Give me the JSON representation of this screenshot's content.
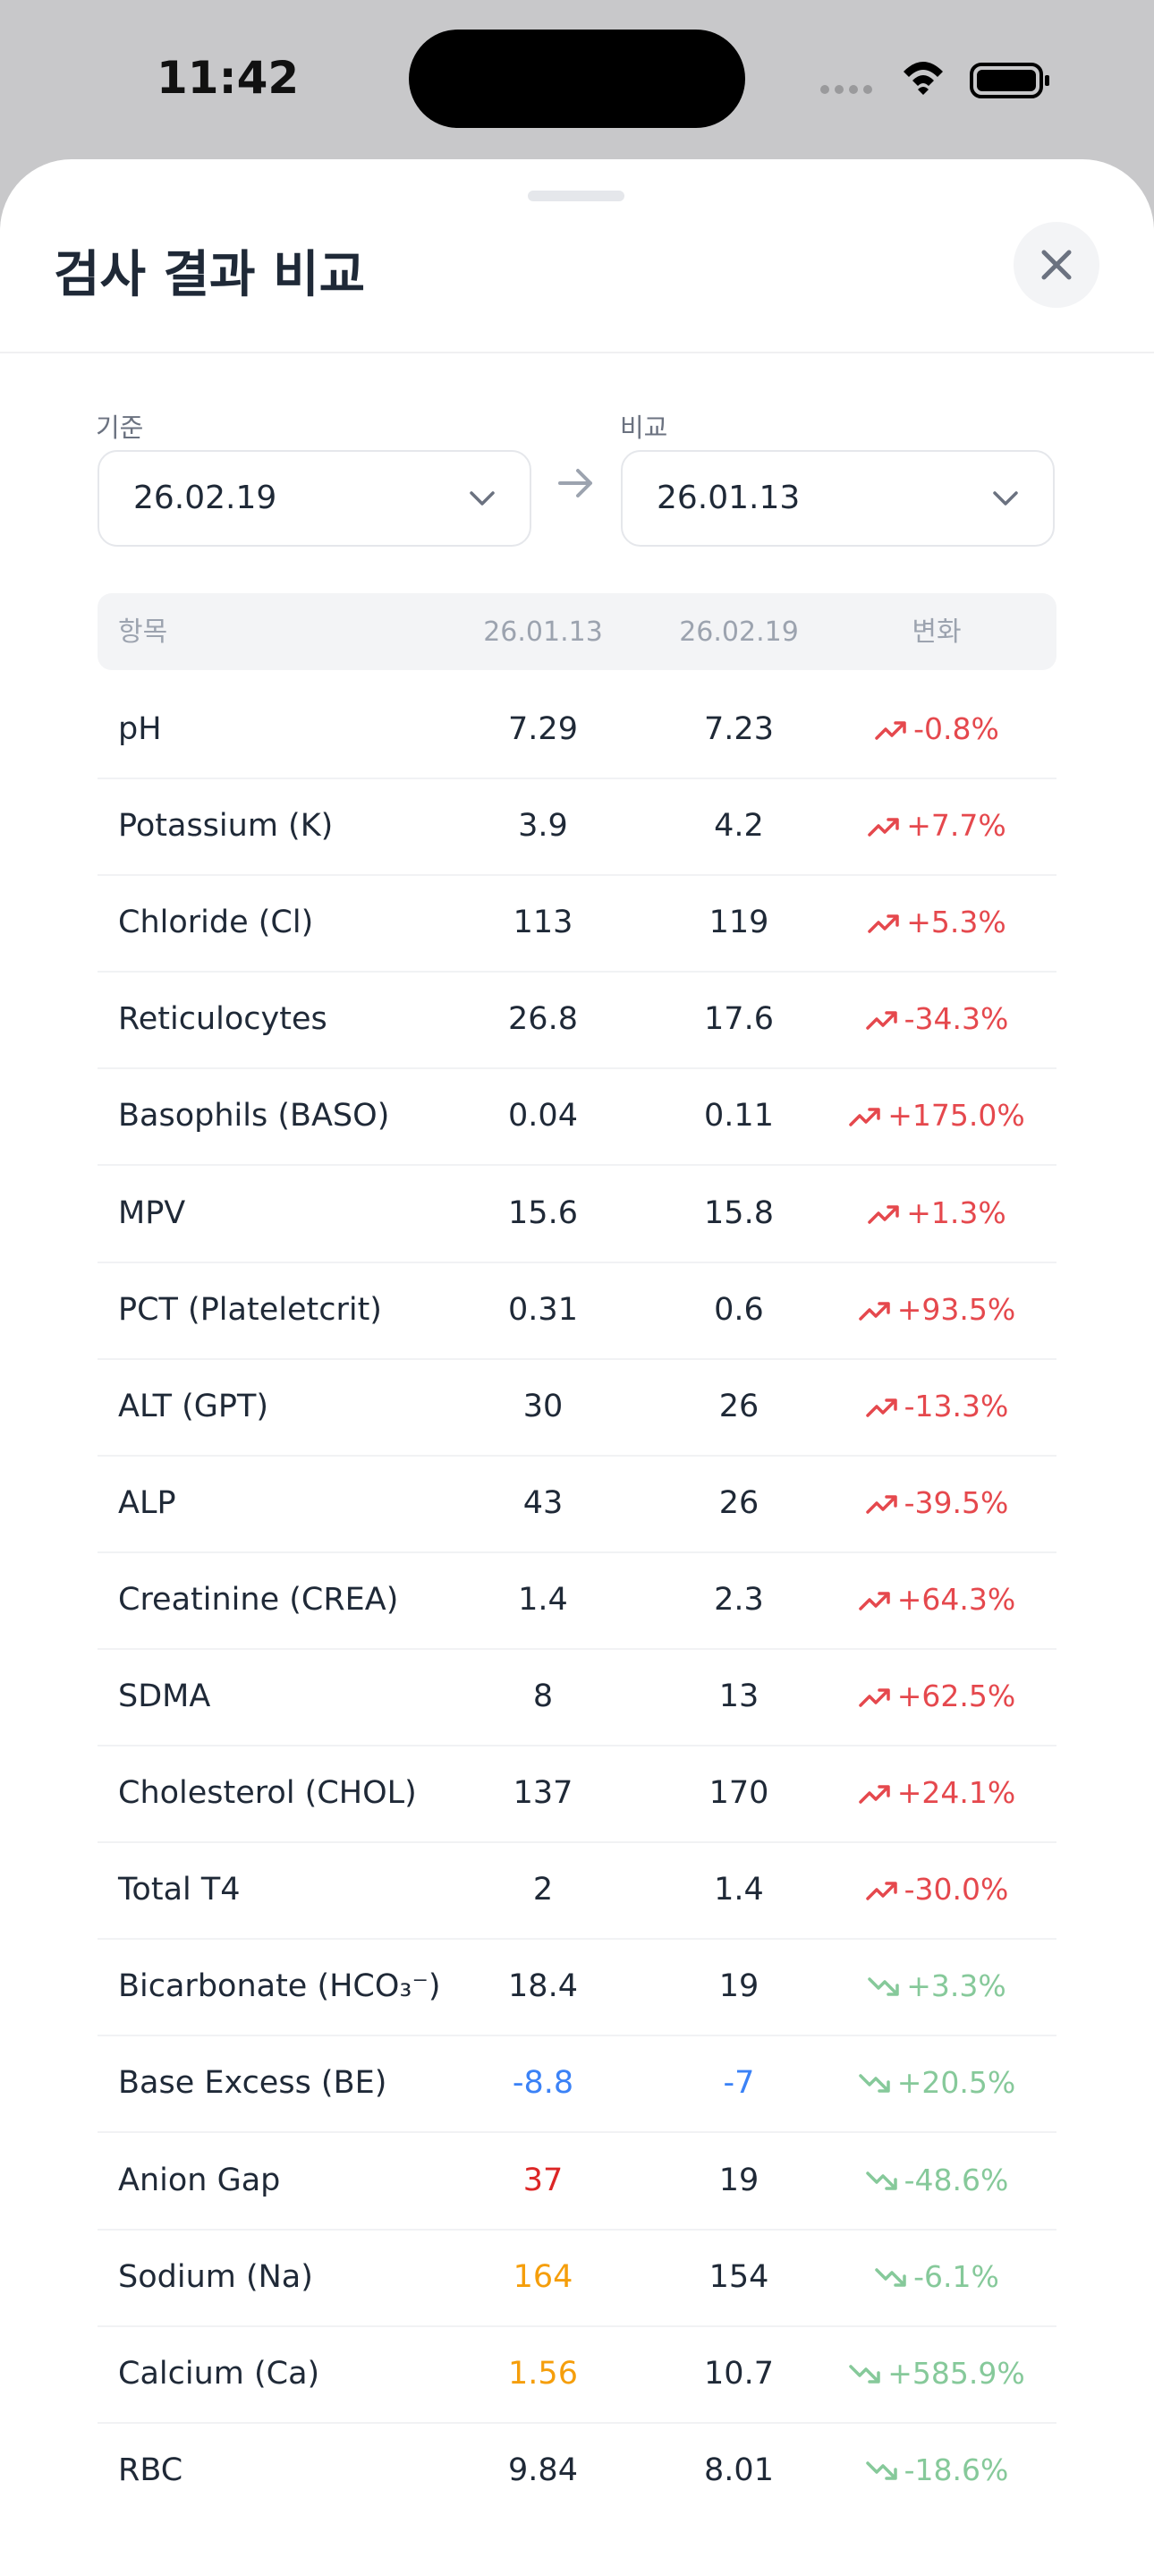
{
  "status_bar": {
    "time": "11:42"
  },
  "header": {
    "title": "검사 결과 비교"
  },
  "selectors": {
    "base": {
      "label": "기준",
      "value": "26.02.19"
    },
    "compare": {
      "label": "비교",
      "value": "26.01.13"
    }
  },
  "table": {
    "columns": [
      "항목",
      "26.01.13",
      "26.02.19",
      "변화"
    ],
    "rows": [
      {
        "name": "pH",
        "values": [
          "7.29",
          "7.23"
        ],
        "change": "-0.8%",
        "trend": "up"
      },
      {
        "name": "Potassium (K)",
        "values": [
          "3.9",
          "4.2"
        ],
        "change": "+7.7%",
        "trend": "up"
      },
      {
        "name": "Chloride (Cl)",
        "values": [
          "113",
          "119"
        ],
        "change": "+5.3%",
        "trend": "up"
      },
      {
        "name": "Reticulocytes",
        "values": [
          "26.8",
          "17.6"
        ],
        "change": "-34.3%",
        "trend": "up"
      },
      {
        "name": "Basophils (BASO)",
        "values": [
          "0.04",
          "0.11"
        ],
        "change": "+175.0%",
        "trend": "up"
      },
      {
        "name": "MPV",
        "values": [
          "15.6",
          "15.8"
        ],
        "change": "+1.3%",
        "trend": "up"
      },
      {
        "name": "PCT (Plateletcrit)",
        "values": [
          "0.31",
          "0.6"
        ],
        "change": "+93.5%",
        "trend": "up"
      },
      {
        "name": "ALT (GPT)",
        "values": [
          "30",
          "26"
        ],
        "change": "-13.3%",
        "trend": "up"
      },
      {
        "name": "ALP",
        "values": [
          "43",
          "26"
        ],
        "change": "-39.5%",
        "trend": "up"
      },
      {
        "name": "Creatinine (CREA)",
        "values": [
          "1.4",
          "2.3"
        ],
        "change": "+64.3%",
        "trend": "up"
      },
      {
        "name": "SDMA",
        "values": [
          "8",
          "13"
        ],
        "change": "+62.5%",
        "trend": "up"
      },
      {
        "name": "Cholesterol (CHOL)",
        "values": [
          "137",
          "170"
        ],
        "change": "+24.1%",
        "trend": "up"
      },
      {
        "name": "Total T4",
        "values": [
          "2",
          "1.4"
        ],
        "change": "-30.0%",
        "trend": "up"
      },
      {
        "name": "Bicarbonate (HCO₃⁻)",
        "values": [
          "18.4",
          "19"
        ],
        "change": "+3.3%",
        "trend": "down"
      },
      {
        "name": "Base Excess (BE)",
        "values": [
          {
            "text": "-8.8",
            "color": "#3b82f6"
          },
          {
            "text": "-7",
            "color": "#3b82f6"
          }
        ],
        "change": "+20.5%",
        "trend": "down"
      },
      {
        "name": "Anion Gap",
        "values": [
          {
            "text": "37",
            "color": "#dc2626"
          },
          "19"
        ],
        "change": "-48.6%",
        "trend": "down"
      },
      {
        "name": "Sodium (Na)",
        "values": [
          {
            "text": "164",
            "color": "#f59e0b"
          },
          "154"
        ],
        "change": "-6.1%",
        "trend": "down"
      },
      {
        "name": "Calcium (Ca)",
        "values": [
          {
            "text": "1.56",
            "color": "#f59e0b"
          },
          "10.7"
        ],
        "change": "+585.9%",
        "trend": "down"
      },
      {
        "name": "RBC",
        "values": [
          "9.84",
          "8.01"
        ],
        "change": "-18.6%",
        "trend": "down"
      }
    ]
  }
}
